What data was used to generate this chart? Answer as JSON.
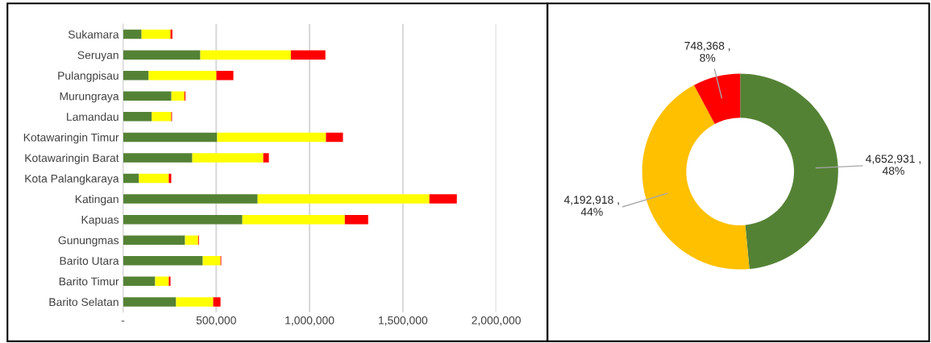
{
  "chart_data": [
    {
      "type": "bar",
      "orientation": "horizontal",
      "stacked": true,
      "categories": [
        "Sukamara",
        "Seruyan",
        "Pulangpisau",
        "Murungraya",
        "Lamandau",
        "Kotawaringin Timur",
        "Kotawaringin Barat",
        "Kota Palangkaraya",
        "Katingan",
        "Kapuas",
        "Gunungmas",
        "Barito Utara",
        "Barito Timur",
        "Barito Selatan"
      ],
      "series": [
        {
          "color": "#548235",
          "values": [
            100000,
            415000,
            138000,
            260000,
            155000,
            505000,
            372000,
            86000,
            722000,
            640000,
            333000,
            428000,
            173000,
            285000
          ]
        },
        {
          "color": "#ffff00",
          "values": [
            155000,
            485000,
            363000,
            70000,
            104000,
            583000,
            380000,
            160000,
            920000,
            549000,
            70000,
            95000,
            73000,
            199000
          ]
        },
        {
          "color": "#ff0000",
          "values": [
            10000,
            185000,
            91000,
            5000,
            4000,
            91000,
            30000,
            13000,
            147000,
            125000,
            4000,
            4000,
            9000,
            39000
          ]
        }
      ],
      "xlim": [
        0,
        2000000
      ],
      "xticks": [
        {
          "value": 0,
          "label": "-"
        },
        {
          "value": 500000,
          "label": "500,000"
        },
        {
          "value": 1000000,
          "label": "1,000,000"
        },
        {
          "value": 1500000,
          "label": "1,500,000"
        },
        {
          "value": 2000000,
          "label": "2,000,000"
        }
      ],
      "grid": "x",
      "legend": false
    },
    {
      "type": "donut",
      "categories": [
        null,
        null,
        null
      ],
      "values": [
        4652931,
        4192918,
        748368
      ],
      "colors": [
        "#548235",
        "#ffc000",
        "#ff0000"
      ],
      "value_labels": [
        "4,652,931 ,\n48%",
        "4,192,918 ,\n44%",
        "748,368 ,\n8%"
      ],
      "legend": false
    }
  ]
}
